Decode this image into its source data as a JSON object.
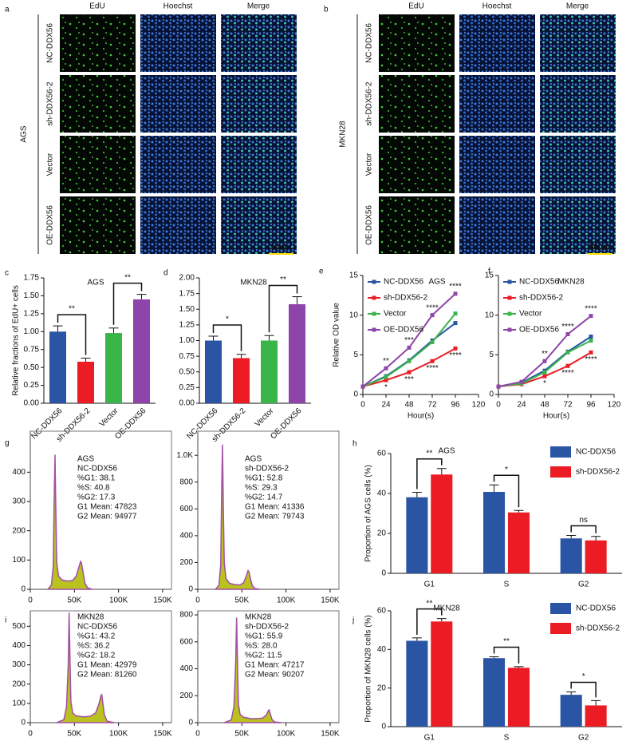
{
  "panels": {
    "a": {
      "letter": "a",
      "cell_line": "AGS",
      "columns": [
        "EdU",
        "Hoechst",
        "Merge"
      ],
      "rows": [
        "NC-DDX56",
        "sh-DDX56-2",
        "Vector",
        "OE-DDX56"
      ],
      "scale_bar": "50um"
    },
    "b": {
      "letter": "b",
      "cell_line": "MKN28",
      "columns": [
        "EdU",
        "Hoechst",
        "Merge"
      ],
      "rows": [
        "NC-DDX56",
        "sh-DDX56-2",
        "Vector",
        "OE-DDX56"
      ],
      "scale_bar": "50um"
    }
  },
  "chart_data": [
    {
      "type": "bar",
      "letter": "c",
      "title": "AGS",
      "ylabel": "Relative fractions of EdU+ cells",
      "categories": [
        "NC-DDX56",
        "sh-DDX56-2",
        "Vector",
        "OE-DDX56"
      ],
      "values": [
        1.0,
        0.58,
        0.98,
        1.45
      ],
      "errors": [
        0.08,
        0.05,
        0.07,
        0.07
      ],
      "colors": [
        "#2a55a5",
        "#ec1c24",
        "#39b54a",
        "#8e44a8"
      ],
      "ylim": [
        0,
        1.75
      ],
      "yticks": [
        {
          "value": 0,
          "label": "0.00"
        },
        {
          "value": 0.25,
          "label": "0.25"
        },
        {
          "value": 0.5,
          "label": "0.50"
        },
        {
          "value": 0.75,
          "label": "0.75"
        },
        {
          "value": 1,
          "label": "1.00"
        },
        {
          "value": 1.25,
          "label": "1.25"
        },
        {
          "value": 1.5,
          "label": "1.50"
        },
        {
          "value": 1.75,
          "label": "1.75"
        }
      ],
      "significance": [
        "**",
        "**"
      ]
    },
    {
      "type": "bar",
      "letter": "d",
      "title": "MKN28",
      "categories": [
        "NC-DDX56",
        "sh-DDX56-2",
        "Vector",
        "OE-DDX56"
      ],
      "values": [
        1.0,
        0.72,
        1.0,
        1.58
      ],
      "errors": [
        0.07,
        0.06,
        0.08,
        0.12
      ],
      "colors": [
        "#2a55a5",
        "#ec1c24",
        "#39b54a",
        "#8e44a8"
      ],
      "ylim": [
        0,
        2.0
      ],
      "yticks": [
        {
          "value": 0,
          "label": "0.00"
        },
        {
          "value": 0.25,
          "label": "0.25"
        },
        {
          "value": 0.5,
          "label": "0.50"
        },
        {
          "value": 0.75,
          "label": "0.75"
        },
        {
          "value": 1,
          "label": "1.00"
        },
        {
          "value": 1.25,
          "label": "1.25"
        },
        {
          "value": 1.5,
          "label": "1.50"
        },
        {
          "value": 1.75,
          "label": "1.75"
        },
        {
          "value": 2,
          "label": "2.00"
        }
      ],
      "significance": [
        "*",
        "**"
      ]
    },
    {
      "type": "line",
      "letter": "e",
      "title": "AGS",
      "ylabel": "Relative OD value",
      "xlabel": "Hour(s)",
      "x": [
        0,
        24,
        48,
        72,
        96
      ],
      "series": [
        {
          "name": "NC-DDX56",
          "color": "#2a55a5",
          "values": [
            1,
            2.3,
            4.3,
            6.8,
            9.0
          ]
        },
        {
          "name": "sh-DDX56-2",
          "color": "#ec1c24",
          "values": [
            1,
            1.8,
            2.8,
            4.2,
            5.8
          ]
        },
        {
          "name": "Vector",
          "color": "#39b54a",
          "values": [
            1,
            2.2,
            4.2,
            6.6,
            10.2
          ]
        },
        {
          "name": "OE-DDX56",
          "color": "#8e44a8",
          "values": [
            1,
            3.3,
            5.9,
            10.0,
            12.7
          ]
        }
      ],
      "xlim": [
        0,
        120
      ],
      "xticks": [
        0,
        24,
        48,
        72,
        96,
        120
      ],
      "ylim": [
        0,
        15
      ],
      "yticks": [
        0,
        5,
        10,
        15
      ],
      "annotations": [
        "**",
        "*",
        "***",
        "***",
        "****",
        "****",
        "****",
        "****"
      ]
    },
    {
      "type": "line",
      "letter": "f",
      "title": "MKN28",
      "xlabel": "Hour(s)",
      "x": [
        0,
        24,
        48,
        72,
        96
      ],
      "series": [
        {
          "name": "NC-DDX56",
          "color": "#2a55a5",
          "values": [
            1,
            1.5,
            3.0,
            5.4,
            7.3
          ]
        },
        {
          "name": "sh-DDX56-2",
          "color": "#ec1c24",
          "values": [
            1,
            1.3,
            2.3,
            3.6,
            5.3
          ]
        },
        {
          "name": "Vector",
          "color": "#39b54a",
          "values": [
            1,
            1.4,
            2.8,
            5.3,
            6.8
          ]
        },
        {
          "name": "OE-DDX56",
          "color": "#8e44a8",
          "values": [
            1,
            1.6,
            4.2,
            7.6,
            9.9
          ]
        }
      ],
      "xlim": [
        0,
        120
      ],
      "xticks": [
        0,
        24,
        48,
        72,
        96,
        120
      ],
      "ylim": [
        0,
        15
      ],
      "yticks": [
        0,
        5,
        10,
        15
      ],
      "annotations": [
        "**",
        "*",
        "****",
        "****",
        "****",
        "****"
      ]
    },
    {
      "type": "flow-histogram",
      "letter": "g",
      "annotation_lines": [
        "AGS",
        "NC-DDX56",
        "%G1: 38.1",
        "%S: 40.8",
        "%G2: 17.3",
        "G1 Mean: 47823",
        "G2 Mean: 94977"
      ],
      "x": [
        20000,
        24000,
        26000,
        27000,
        28000,
        29000,
        30000,
        32000,
        36000,
        42000,
        48000,
        52000,
        55000,
        57000,
        58000,
        60000,
        62000,
        65000,
        70000
      ],
      "values": [
        0,
        15,
        80,
        300,
        460,
        260,
        90,
        45,
        32,
        28,
        30,
        45,
        75,
        95,
        90,
        55,
        20,
        5,
        0
      ],
      "xlim": [
        0,
        160000
      ],
      "xticks": [
        0,
        {
          "value": 50000,
          "label": "50K"
        },
        {
          "value": 100000,
          "label": "100K"
        },
        {
          "value": 150000,
          "label": "150K"
        }
      ],
      "ylim": [
        0,
        540
      ],
      "yticks": [
        0,
        100,
        200,
        300,
        400
      ]
    },
    {
      "type": "flow-histogram",
      "annotation_lines": [
        "AGS",
        "sh-DDX56-2",
        "%G1: 52.8",
        "%S: 29.3",
        "%G2: 14.7",
        "G1 Mean: 41336",
        "G2 Mean: 79743"
      ],
      "x": [
        20000,
        24000,
        26000,
        27000,
        28000,
        29000,
        30000,
        32000,
        36000,
        42000,
        48000,
        52000,
        55000,
        57000,
        58000,
        60000,
        62000,
        65000,
        70000
      ],
      "values": [
        0,
        30,
        180,
        700,
        1080,
        600,
        200,
        80,
        45,
        35,
        33,
        50,
        100,
        140,
        130,
        70,
        25,
        5,
        0
      ],
      "xlim": [
        0,
        160000
      ],
      "xticks": [
        0,
        {
          "value": 50000,
          "label": "50K"
        },
        {
          "value": 100000,
          "label": "100K"
        },
        {
          "value": 150000,
          "label": "150K"
        }
      ],
      "ylim": [
        0,
        1180
      ],
      "yticks": [
        0,
        200,
        400,
        600,
        800,
        {
          "value": 1000,
          "label": "1.0K"
        }
      ]
    },
    {
      "type": "grouped-bar",
      "letter": "h",
      "title": "AGS",
      "ylabel": "Proportion of AGS cells (%)",
      "categories": [
        "G1",
        "S",
        "G2"
      ],
      "series": [
        {
          "name": "NC-DDX56",
          "color": "#2a55a5",
          "values": [
            38.1,
            40.8,
            17.5
          ],
          "errors": [
            2.5,
            3.5,
            1.5
          ]
        },
        {
          "name": "sh-DDX56-2",
          "color": "#ec1c24",
          "values": [
            49.5,
            30.5,
            16.5
          ],
          "errors": [
            3,
            1,
            2
          ]
        }
      ],
      "ylim": [
        0,
        60
      ],
      "yticks": [
        0,
        20,
        40,
        60
      ],
      "significance": [
        "**",
        "*",
        "ns"
      ]
    },
    {
      "type": "flow-histogram",
      "letter": "i",
      "annotation_lines": [
        "MKN28",
        "NC-DDX56",
        "%G1: 43.2",
        "%S: 36.2",
        "%G2: 18.2",
        "G1 Mean: 42979",
        "G2 Mean: 81260"
      ],
      "x": [
        30000,
        38000,
        41000,
        43000,
        44000,
        45000,
        46000,
        48000,
        52000,
        60000,
        68000,
        74000,
        78000,
        80000,
        81000,
        82000,
        84000,
        87000,
        95000
      ],
      "values": [
        0,
        15,
        80,
        300,
        570,
        330,
        110,
        50,
        35,
        30,
        33,
        50,
        100,
        140,
        145,
        110,
        40,
        8,
        0
      ],
      "xlim": [
        0,
        160000
      ],
      "xticks": [
        0,
        {
          "value": 50000,
          "label": "50K"
        },
        {
          "value": 100000,
          "label": "100K"
        },
        {
          "value": 150000,
          "label": "150K"
        }
      ],
      "ylim": [
        0,
        580
      ],
      "yticks": [
        0,
        100,
        200,
        300,
        400,
        500
      ]
    },
    {
      "type": "flow-histogram",
      "annotation_lines": [
        "MKN28",
        "sh-DDX56-2",
        "%G1: 55.9",
        "%S: 28.0",
        "%G2: 11.5",
        "G1 Mean: 47217",
        "G2 Mean: 90207"
      ],
      "x": [
        30000,
        38000,
        41000,
        43000,
        44000,
        45000,
        46000,
        48000,
        52000,
        60000,
        68000,
        74000,
        78000,
        80000,
        81000,
        82000,
        84000,
        87000,
        95000
      ],
      "values": [
        0,
        20,
        120,
        450,
        780,
        450,
        140,
        60,
        40,
        30,
        30,
        35,
        60,
        90,
        95,
        70,
        25,
        5,
        0
      ],
      "xlim": [
        0,
        160000
      ],
      "xticks": [
        0,
        {
          "value": 50000,
          "label": "50K"
        },
        {
          "value": 100000,
          "label": "100K"
        },
        {
          "value": 150000,
          "label": "150K"
        }
      ],
      "ylim": [
        0,
        830
      ],
      "yticks": [
        0,
        200,
        400,
        600,
        800
      ]
    },
    {
      "type": "grouped-bar",
      "letter": "j",
      "title": "MKN28",
      "ylabel": "Proportion of MKN28 cells (%)",
      "categories": [
        "G1",
        "S",
        "G2"
      ],
      "series": [
        {
          "name": "NC-DDX56",
          "color": "#2a55a5",
          "values": [
            44.5,
            35.5,
            16.5
          ],
          "errors": [
            1.5,
            0.7,
            1.5
          ]
        },
        {
          "name": "sh-DDX56-2",
          "color": "#ec1c24",
          "values": [
            54.5,
            30.5,
            11
          ],
          "errors": [
            1.5,
            0.6,
            2.5
          ]
        }
      ],
      "ylim": [
        0,
        60
      ],
      "yticks": [
        0,
        20,
        40,
        60
      ],
      "significance": [
        "**",
        "**",
        "*"
      ]
    }
  ]
}
